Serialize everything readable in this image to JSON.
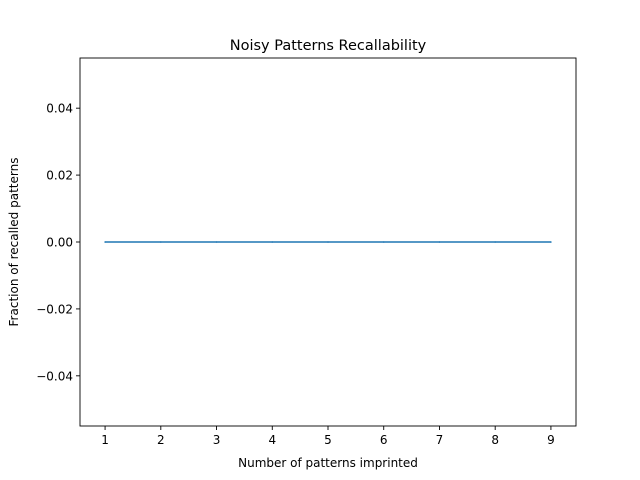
{
  "chart_data": {
    "type": "line",
    "title": "Noisy Patterns Recallability",
    "xlabel": "Number of patterns imprinted",
    "ylabel": "Fraction of recalled patterns",
    "xlim": [
      0.55,
      9.45
    ],
    "ylim": [
      -0.055,
      0.055
    ],
    "xticks": [
      1,
      2,
      3,
      4,
      5,
      6,
      7,
      8,
      9
    ],
    "xtick_labels": [
      "1",
      "2",
      "3",
      "4",
      "5",
      "6",
      "7",
      "8",
      "9"
    ],
    "yticks": [
      -0.04,
      -0.02,
      0.0,
      0.02,
      0.04
    ],
    "ytick_labels": [
      "−0.04",
      "−0.02",
      "0.00",
      "0.02",
      "0.04"
    ],
    "grid": false,
    "legend": "none",
    "series": [
      {
        "color": "#1f77b4",
        "x": [
          1,
          2,
          3,
          4,
          5,
          6,
          7,
          8,
          9
        ],
        "y": [
          0,
          0,
          0,
          0,
          0,
          0,
          0,
          0,
          0
        ]
      }
    ]
  }
}
